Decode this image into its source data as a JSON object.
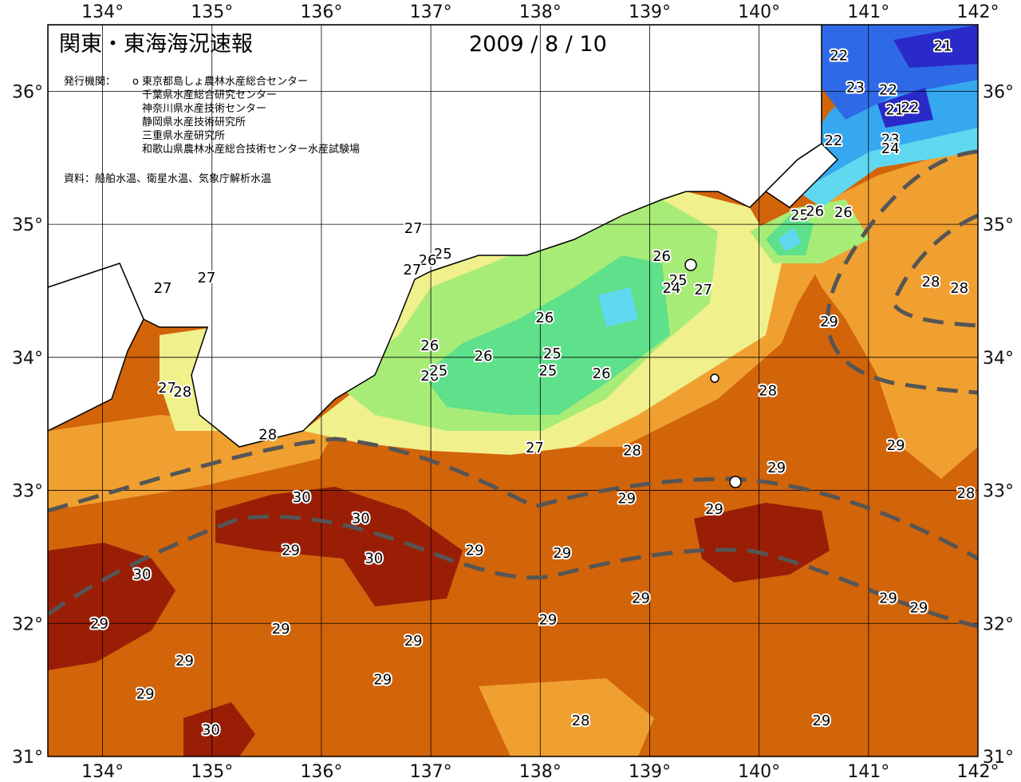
{
  "title": "関東・東海海況速報",
  "date": "2009 / 8 / 10",
  "issuers": {
    "label": "発行機関：",
    "marker": "o",
    "list": [
      "東京都島しょ農林水産総合センター",
      "千葉県水産総合研究センター",
      "神奈川県水産技術センター",
      "静岡県水産技術研究所",
      "三重県水産研究所",
      "和歌山県農林水産総合技術センター水産試験場"
    ]
  },
  "sources": "資料：船舶水温、衛星水温、気象庁解析水温",
  "map": {
    "lon_range": [
      133.5,
      142.0
    ],
    "lat_range": [
      31.0,
      36.5
    ],
    "lon_ticks": [
      "134°",
      "135°",
      "136°",
      "137°",
      "138°",
      "139°",
      "140°",
      "141°",
      "142°"
    ],
    "lat_ticks": [
      "31°",
      "32°",
      "33°",
      "34°",
      "35°",
      "36°"
    ],
    "colors": {
      "t21": "#2a2ac8",
      "t22": "#2f6ae6",
      "t23": "#36a8f0",
      "t24": "#5fd8f0",
      "t25": "#5fe08a",
      "t26": "#a8ec78",
      "t27": "#f0f08c",
      "t28": "#f0a030",
      "t29": "#d2640a",
      "t30": "#9a1e06",
      "land": "#ffffff",
      "kuroshio": "#555555"
    },
    "contour_labels": [
      {
        "t": "21",
        "lon": 141.68,
        "lat": 36.34
      },
      {
        "t": "22",
        "lon": 140.73,
        "lat": 36.27
      },
      {
        "t": "23",
        "lon": 140.88,
        "lat": 36.03
      },
      {
        "t": "22",
        "lon": 141.18,
        "lat": 36.01
      },
      {
        "t": "21",
        "lon": 141.24,
        "lat": 35.86
      },
      {
        "t": "22",
        "lon": 141.38,
        "lat": 35.88
      },
      {
        "t": "22",
        "lon": 140.68,
        "lat": 35.63
      },
      {
        "t": "23",
        "lon": 141.2,
        "lat": 35.64
      },
      {
        "t": "24",
        "lon": 141.2,
        "lat": 35.57
      },
      {
        "t": "25",
        "lon": 140.37,
        "lat": 35.07
      },
      {
        "t": "26",
        "lon": 140.51,
        "lat": 35.1
      },
      {
        "t": "26",
        "lon": 140.77,
        "lat": 35.09
      },
      {
        "t": "27",
        "lon": 136.84,
        "lat": 34.97
      },
      {
        "t": "25",
        "lon": 137.11,
        "lat": 34.78
      },
      {
        "t": "26",
        "lon": 136.97,
        "lat": 34.73
      },
      {
        "t": "27",
        "lon": 136.83,
        "lat": 34.66
      },
      {
        "t": "27",
        "lon": 134.55,
        "lat": 34.52
      },
      {
        "t": "27",
        "lon": 134.95,
        "lat": 34.6
      },
      {
        "t": "26",
        "lon": 139.11,
        "lat": 34.76
      },
      {
        "t": "25",
        "lon": 139.26,
        "lat": 34.58
      },
      {
        "t": "24",
        "lon": 139.2,
        "lat": 34.52
      },
      {
        "t": "27",
        "lon": 139.49,
        "lat": 34.51
      },
      {
        "t": "28",
        "lon": 141.57,
        "lat": 34.57
      },
      {
        "t": "28",
        "lon": 141.83,
        "lat": 34.52
      },
      {
        "t": "29",
        "lon": 140.64,
        "lat": 34.27
      },
      {
        "t": "26",
        "lon": 138.04,
        "lat": 34.3
      },
      {
        "t": "26",
        "lon": 136.99,
        "lat": 34.09
      },
      {
        "t": "25",
        "lon": 138.11,
        "lat": 34.03
      },
      {
        "t": "26",
        "lon": 137.48,
        "lat": 34.01
      },
      {
        "t": "26",
        "lon": 136.99,
        "lat": 33.86
      },
      {
        "t": "25",
        "lon": 137.07,
        "lat": 33.9
      },
      {
        "t": "25",
        "lon": 138.07,
        "lat": 33.9
      },
      {
        "t": "26",
        "lon": 138.56,
        "lat": 33.88
      },
      {
        "t": "28",
        "lon": 140.08,
        "lat": 33.75
      },
      {
        "t": "27",
        "lon": 134.59,
        "lat": 33.77
      },
      {
        "t": "28",
        "lon": 134.73,
        "lat": 33.74
      },
      {
        "t": "28",
        "lon": 135.51,
        "lat": 33.42
      },
      {
        "t": "27",
        "lon": 137.95,
        "lat": 33.32
      },
      {
        "t": "28",
        "lon": 138.84,
        "lat": 33.3
      },
      {
        "t": "29",
        "lon": 141.25,
        "lat": 33.34
      },
      {
        "t": "29",
        "lon": 140.16,
        "lat": 33.17
      },
      {
        "t": "28",
        "lon": 141.89,
        "lat": 32.98
      },
      {
        "t": "30",
        "lon": 135.82,
        "lat": 32.95
      },
      {
        "t": "29",
        "lon": 138.79,
        "lat": 32.94
      },
      {
        "t": "30",
        "lon": 136.36,
        "lat": 32.79
      },
      {
        "t": "29",
        "lon": 139.59,
        "lat": 32.86
      },
      {
        "t": "29",
        "lon": 135.72,
        "lat": 32.55
      },
      {
        "t": "30",
        "lon": 136.48,
        "lat": 32.49
      },
      {
        "t": "29",
        "lon": 137.4,
        "lat": 32.55
      },
      {
        "t": "29",
        "lon": 138.2,
        "lat": 32.53
      },
      {
        "t": "30",
        "lon": 134.36,
        "lat": 32.37
      },
      {
        "t": "29",
        "lon": 138.92,
        "lat": 32.19
      },
      {
        "t": "29",
        "lon": 141.18,
        "lat": 32.19
      },
      {
        "t": "29",
        "lon": 141.46,
        "lat": 32.12
      },
      {
        "t": "29",
        "lon": 133.97,
        "lat": 32.0
      },
      {
        "t": "29",
        "lon": 138.07,
        "lat": 32.03
      },
      {
        "t": "29",
        "lon": 135.63,
        "lat": 31.96
      },
      {
        "t": "29",
        "lon": 136.84,
        "lat": 31.87
      },
      {
        "t": "29",
        "lon": 134.75,
        "lat": 31.72
      },
      {
        "t": "29",
        "lon": 136.56,
        "lat": 31.58
      },
      {
        "t": "29",
        "lon": 134.39,
        "lat": 31.47
      },
      {
        "t": "28",
        "lon": 138.37,
        "lat": 31.27
      },
      {
        "t": "29",
        "lon": 140.57,
        "lat": 31.27
      },
      {
        "t": "30",
        "lon": 134.99,
        "lat": 31.2
      }
    ]
  }
}
